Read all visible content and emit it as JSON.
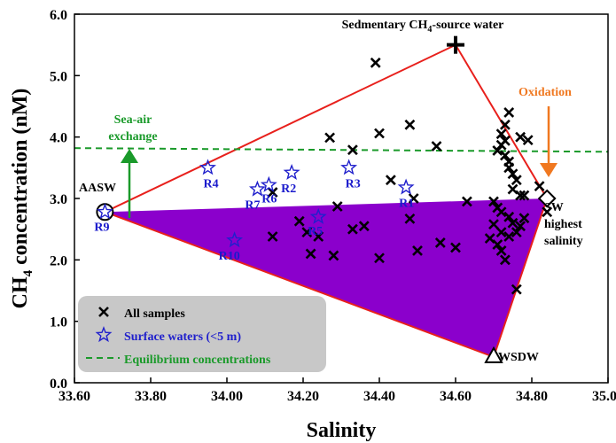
{
  "chart_data": {
    "type": "scatter",
    "xlabel": "Salinity",
    "ylabel_main": "CH",
    "ylabel_sub": "4",
    "ylabel_rest": " concentration (nM)",
    "xlim": [
      33.6,
      35.0
    ],
    "ylim": [
      0.0,
      6.0
    ],
    "x_ticks": [
      33.6,
      33.8,
      34.0,
      34.2,
      34.4,
      34.6,
      34.8,
      35.0
    ],
    "x_tick_labels": [
      "33.60",
      "33.80",
      "34.00",
      "34.20",
      "34.40",
      "34.60",
      "34.80",
      "35.00"
    ],
    "y_ticks": [
      0,
      1,
      2,
      3,
      4,
      5,
      6
    ],
    "y_tick_labels": [
      "0.0",
      "1.0",
      "2.0",
      "3.0",
      "4.0",
      "5.0",
      "6.0"
    ],
    "equilibrium_y": [
      3.82,
      3.76
    ],
    "triangle_outline": [
      [
        33.68,
        2.78
      ],
      [
        34.6,
        5.5
      ],
      [
        34.84,
        3.0
      ],
      [
        34.7,
        0.42
      ],
      [
        33.68,
        2.78
      ]
    ],
    "mixing_region": [
      [
        33.68,
        2.78
      ],
      [
        34.84,
        3.0
      ],
      [
        34.7,
        0.42
      ]
    ],
    "endmembers": [
      {
        "label": "AASW",
        "x": 33.68,
        "y": 2.78,
        "marker": "circle"
      },
      {
        "label": "Sedmentary CH4-source water",
        "x": 34.6,
        "y": 5.5,
        "marker": "plus"
      },
      {
        "label": "SW highest salinity",
        "x": 34.84,
        "y": 3.0,
        "marker": "diamond"
      },
      {
        "label": "WSDW",
        "x": 34.7,
        "y": 0.42,
        "marker": "triangle"
      }
    ],
    "series": [
      {
        "name": "All samples",
        "marker": "x",
        "points": [
          [
            34.39,
            5.21
          ],
          [
            34.48,
            4.2
          ],
          [
            34.4,
            4.06
          ],
          [
            34.55,
            3.85
          ],
          [
            34.27,
            3.99
          ],
          [
            34.33,
            3.79
          ],
          [
            34.43,
            3.3
          ],
          [
            34.49,
            3.0
          ],
          [
            34.12,
            3.1
          ],
          [
            34.29,
            2.87
          ],
          [
            34.19,
            2.63
          ],
          [
            34.21,
            2.45
          ],
          [
            34.24,
            2.38
          ],
          [
            34.12,
            2.38
          ],
          [
            34.33,
            2.5
          ],
          [
            34.36,
            2.55
          ],
          [
            34.48,
            2.67
          ],
          [
            34.22,
            2.1
          ],
          [
            34.28,
            2.07
          ],
          [
            34.4,
            2.03
          ],
          [
            34.5,
            2.15
          ],
          [
            34.56,
            2.28
          ],
          [
            34.6,
            2.2
          ],
          [
            34.63,
            2.95
          ],
          [
            34.74,
            4.4
          ],
          [
            34.73,
            4.2
          ],
          [
            34.72,
            4.05
          ],
          [
            34.73,
            3.94
          ],
          [
            34.72,
            3.87
          ],
          [
            34.71,
            3.78
          ],
          [
            34.73,
            3.7
          ],
          [
            34.74,
            3.6
          ],
          [
            34.74,
            3.5
          ],
          [
            34.75,
            3.4
          ],
          [
            34.76,
            3.3
          ],
          [
            34.77,
            4.0
          ],
          [
            34.79,
            3.95
          ],
          [
            34.75,
            3.15
          ],
          [
            34.77,
            3.05
          ],
          [
            34.78,
            3.05
          ],
          [
            34.82,
            3.2
          ],
          [
            34.84,
            2.78
          ],
          [
            34.7,
            2.95
          ],
          [
            34.71,
            2.85
          ],
          [
            34.72,
            2.78
          ],
          [
            34.74,
            2.7
          ],
          [
            34.75,
            2.6
          ],
          [
            34.77,
            2.55
          ],
          [
            34.78,
            2.68
          ],
          [
            34.7,
            2.58
          ],
          [
            34.72,
            2.45
          ],
          [
            34.74,
            2.38
          ],
          [
            34.69,
            2.35
          ],
          [
            34.71,
            2.25
          ],
          [
            34.72,
            2.15
          ],
          [
            34.73,
            2.0
          ],
          [
            34.76,
            2.45
          ],
          [
            34.76,
            1.52
          ]
        ]
      },
      {
        "name": "Surface waters (<5 m)",
        "marker": "star",
        "points": [
          {
            "label": "R1",
            "x": 34.47,
            "y": 3.18
          },
          {
            "label": "R2",
            "x": 34.17,
            "y": 3.42
          },
          {
            "label": "R3",
            "x": 34.32,
            "y": 3.5
          },
          {
            "label": "R4",
            "x": 33.95,
            "y": 3.5
          },
          {
            "label": "R5",
            "x": 34.24,
            "y": 2.7
          },
          {
            "label": "R6",
            "x": 34.11,
            "y": 3.22
          },
          {
            "label": "R7",
            "x": 34.08,
            "y": 3.15
          },
          {
            "label": "R9",
            "x": 33.68,
            "y": 2.78
          },
          {
            "label": "R10",
            "x": 34.02,
            "y": 2.32
          }
        ]
      },
      {
        "name": "Equilibrium concentrations",
        "marker": "dashed-line"
      }
    ],
    "annotations": {
      "sea_air": [
        "Sea-air",
        "exchange"
      ],
      "oxidation": "Oxidation",
      "source_main": "Sedmentary CH",
      "source_sub": "4",
      "source_rest": "-source water",
      "aasw": "AASW",
      "sw": [
        "SW",
        "highest",
        "salinity"
      ],
      "wsdw": "WSDW"
    },
    "legend_position": "bottom-left"
  },
  "colors": {
    "outline": "#e8201c",
    "mixing_fill": "#8b00cc",
    "equilibrium": "#1a9a2a",
    "sea_air_arrow": "#1a9a2a",
    "oxidation": "#f07820",
    "surface_star": "#2020cc",
    "legend_bg": "#c8c8c8"
  }
}
